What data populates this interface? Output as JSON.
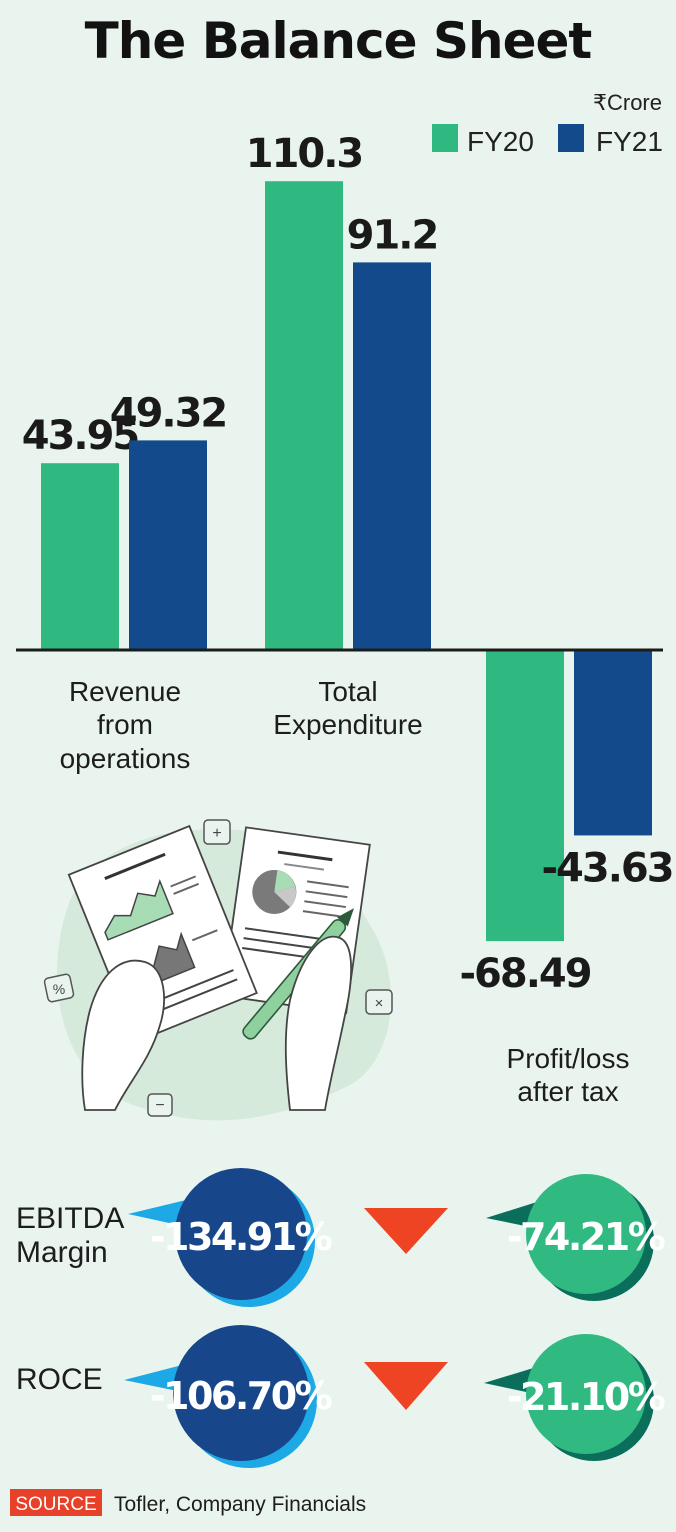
{
  "title": "The Balance Sheet",
  "unit": "₹Crore",
  "colors": {
    "fy20": "#2fb880",
    "fy21": "#124a8c",
    "fy21_circle": "#17468a",
    "fy20_circle": "#31b982",
    "down_arrow": "#ee4424",
    "source_tag": "#e8412a"
  },
  "chart_data": {
    "type": "bar",
    "title": "The Balance Sheet",
    "unit": "₹Crore",
    "categories": [
      "Revenue from operations",
      "Total Expenditure",
      "Profit/loss after tax"
    ],
    "category_lines": [
      [
        "Revenue",
        "from",
        "operations"
      ],
      [
        "Total",
        "Expenditure"
      ],
      [
        "Profit/loss",
        "after tax"
      ]
    ],
    "series": [
      {
        "name": "FY20",
        "values": [
          43.95,
          110.3,
          -68.49
        ],
        "labels": [
          "43.95",
          "110.3",
          "-68.49"
        ]
      },
      {
        "name": "FY21",
        "values": [
          49.32,
          91.2,
          -43.63
        ],
        "labels": [
          "49.32",
          "91.2",
          "-43.63"
        ]
      }
    ],
    "legend": "top-right",
    "ylabel": "",
    "xlabel": ""
  },
  "metrics": [
    {
      "label_lines": [
        "EBITDA",
        "Margin"
      ],
      "fy21": "-134.91%",
      "fy20": "-74.21%",
      "direction": "down"
    },
    {
      "label_lines": [
        "ROCE"
      ],
      "fy21": "-106.70%",
      "fy20": "-21.10%",
      "direction": "down"
    }
  ],
  "icons": {
    "illustration": "hands-holding-financial-report-icon",
    "arrow": "down-triangle-icon"
  },
  "source": {
    "tag": "SOURCE",
    "text": "Tofler, Company Financials"
  }
}
